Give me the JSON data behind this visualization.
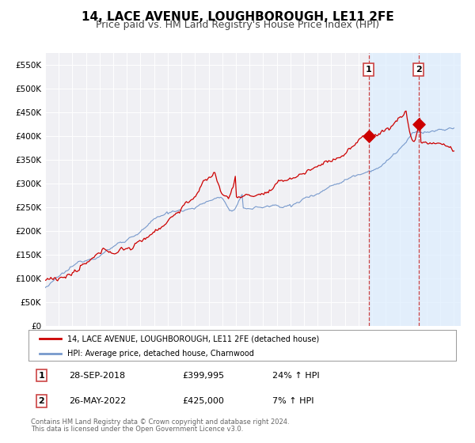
{
  "title": "14, LACE AVENUE, LOUGHBOROUGH, LE11 2FE",
  "subtitle": "Price paid vs. HM Land Registry's House Price Index (HPI)",
  "ylim": [
    0,
    575000
  ],
  "yticks": [
    0,
    50000,
    100000,
    150000,
    200000,
    250000,
    300000,
    350000,
    400000,
    450000,
    500000,
    550000
  ],
  "ytick_labels": [
    "£0",
    "£50K",
    "£100K",
    "£150K",
    "£200K",
    "£250K",
    "£300K",
    "£350K",
    "£400K",
    "£450K",
    "£500K",
    "£550K"
  ],
  "xlim_start": 1995.0,
  "xlim_end": 2025.5,
  "background_color": "#ffffff",
  "plot_bg_color": "#f0f0f4",
  "grid_color": "#ffffff",
  "red_line_color": "#cc0000",
  "blue_line_color": "#7799cc",
  "shade_color": "#ddeeff",
  "marker1_date": 2018.74,
  "marker1_value": 399995,
  "marker2_date": 2022.4,
  "marker2_value": 425000,
  "vline_color": "#cc4444",
  "title_fontsize": 11,
  "subtitle_fontsize": 9,
  "legend_label_red": "14, LACE AVENUE, LOUGHBOROUGH, LE11 2FE (detached house)",
  "legend_label_blue": "HPI: Average price, detached house, Charnwood",
  "annotation1_date_str": "28-SEP-2018",
  "annotation1_price_str": "£399,995",
  "annotation1_hpi_str": "24% ↑ HPI",
  "annotation2_date_str": "26-MAY-2022",
  "annotation2_price_str": "£425,000",
  "annotation2_hpi_str": "7% ↑ HPI",
  "footer1": "Contains HM Land Registry data © Crown copyright and database right 2024.",
  "footer2": "This data is licensed under the Open Government Licence v3.0."
}
